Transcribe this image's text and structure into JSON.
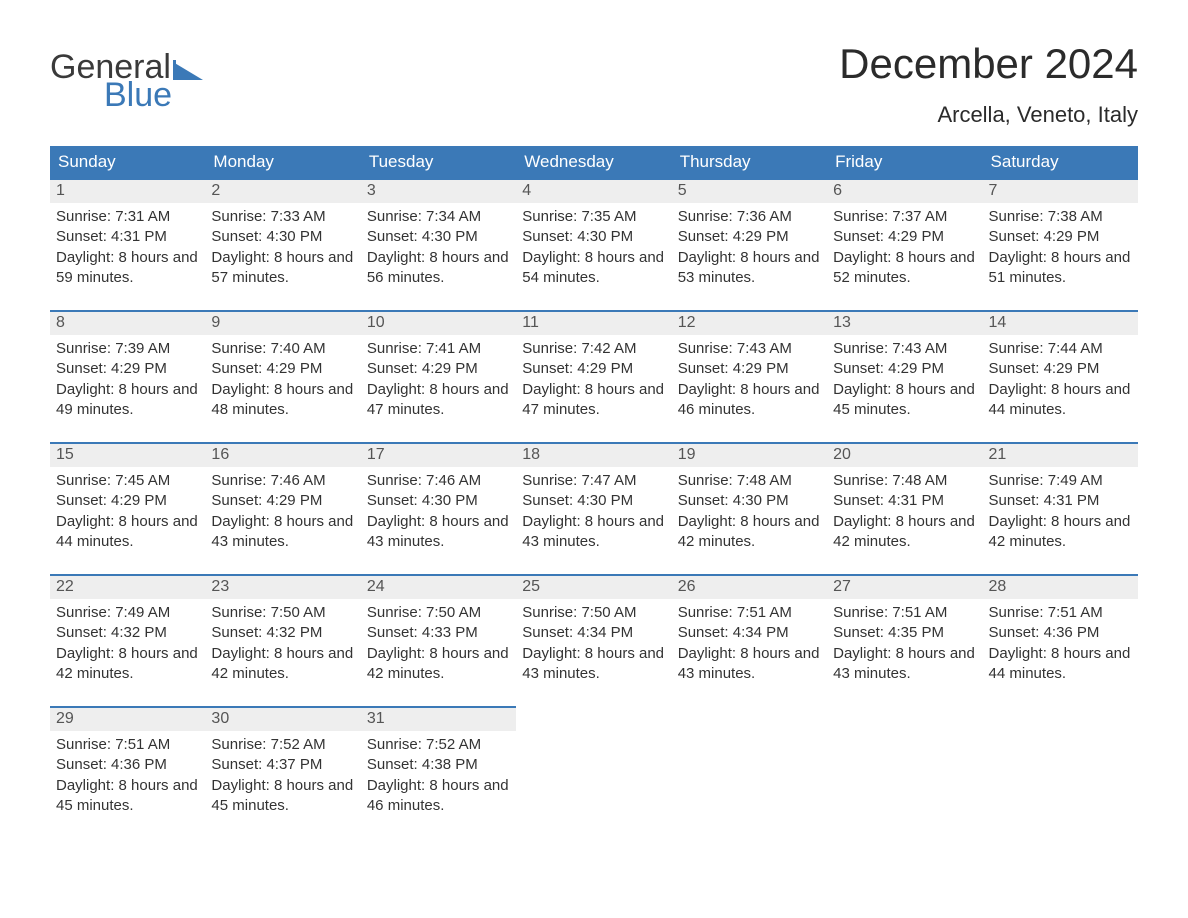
{
  "brand": {
    "word1": "General",
    "word2": "Blue"
  },
  "title": "December 2024",
  "location": "Arcella, Veneto, Italy",
  "colors": {
    "brand_blue": "#3b79b7",
    "header_gray": "#eeeeee",
    "text": "#333333",
    "background": "#ffffff"
  },
  "day_headers": [
    "Sunday",
    "Monday",
    "Tuesday",
    "Wednesday",
    "Thursday",
    "Friday",
    "Saturday"
  ],
  "weeks": [
    [
      {
        "n": "1",
        "sunrise": "7:31 AM",
        "sunset": "4:31 PM",
        "daylight": "8 hours and 59 minutes."
      },
      {
        "n": "2",
        "sunrise": "7:33 AM",
        "sunset": "4:30 PM",
        "daylight": "8 hours and 57 minutes."
      },
      {
        "n": "3",
        "sunrise": "7:34 AM",
        "sunset": "4:30 PM",
        "daylight": "8 hours and 56 minutes."
      },
      {
        "n": "4",
        "sunrise": "7:35 AM",
        "sunset": "4:30 PM",
        "daylight": "8 hours and 54 minutes."
      },
      {
        "n": "5",
        "sunrise": "7:36 AM",
        "sunset": "4:29 PM",
        "daylight": "8 hours and 53 minutes."
      },
      {
        "n": "6",
        "sunrise": "7:37 AM",
        "sunset": "4:29 PM",
        "daylight": "8 hours and 52 minutes."
      },
      {
        "n": "7",
        "sunrise": "7:38 AM",
        "sunset": "4:29 PM",
        "daylight": "8 hours and 51 minutes."
      }
    ],
    [
      {
        "n": "8",
        "sunrise": "7:39 AM",
        "sunset": "4:29 PM",
        "daylight": "8 hours and 49 minutes."
      },
      {
        "n": "9",
        "sunrise": "7:40 AM",
        "sunset": "4:29 PM",
        "daylight": "8 hours and 48 minutes."
      },
      {
        "n": "10",
        "sunrise": "7:41 AM",
        "sunset": "4:29 PM",
        "daylight": "8 hours and 47 minutes."
      },
      {
        "n": "11",
        "sunrise": "7:42 AM",
        "sunset": "4:29 PM",
        "daylight": "8 hours and 47 minutes."
      },
      {
        "n": "12",
        "sunrise": "7:43 AM",
        "sunset": "4:29 PM",
        "daylight": "8 hours and 46 minutes."
      },
      {
        "n": "13",
        "sunrise": "7:43 AM",
        "sunset": "4:29 PM",
        "daylight": "8 hours and 45 minutes."
      },
      {
        "n": "14",
        "sunrise": "7:44 AM",
        "sunset": "4:29 PM",
        "daylight": "8 hours and 44 minutes."
      }
    ],
    [
      {
        "n": "15",
        "sunrise": "7:45 AM",
        "sunset": "4:29 PM",
        "daylight": "8 hours and 44 minutes."
      },
      {
        "n": "16",
        "sunrise": "7:46 AM",
        "sunset": "4:29 PM",
        "daylight": "8 hours and 43 minutes."
      },
      {
        "n": "17",
        "sunrise": "7:46 AM",
        "sunset": "4:30 PM",
        "daylight": "8 hours and 43 minutes."
      },
      {
        "n": "18",
        "sunrise": "7:47 AM",
        "sunset": "4:30 PM",
        "daylight": "8 hours and 43 minutes."
      },
      {
        "n": "19",
        "sunrise": "7:48 AM",
        "sunset": "4:30 PM",
        "daylight": "8 hours and 42 minutes."
      },
      {
        "n": "20",
        "sunrise": "7:48 AM",
        "sunset": "4:31 PM",
        "daylight": "8 hours and 42 minutes."
      },
      {
        "n": "21",
        "sunrise": "7:49 AM",
        "sunset": "4:31 PM",
        "daylight": "8 hours and 42 minutes."
      }
    ],
    [
      {
        "n": "22",
        "sunrise": "7:49 AM",
        "sunset": "4:32 PM",
        "daylight": "8 hours and 42 minutes."
      },
      {
        "n": "23",
        "sunrise": "7:50 AM",
        "sunset": "4:32 PM",
        "daylight": "8 hours and 42 minutes."
      },
      {
        "n": "24",
        "sunrise": "7:50 AM",
        "sunset": "4:33 PM",
        "daylight": "8 hours and 42 minutes."
      },
      {
        "n": "25",
        "sunrise": "7:50 AM",
        "sunset": "4:34 PM",
        "daylight": "8 hours and 43 minutes."
      },
      {
        "n": "26",
        "sunrise": "7:51 AM",
        "sunset": "4:34 PM",
        "daylight": "8 hours and 43 minutes."
      },
      {
        "n": "27",
        "sunrise": "7:51 AM",
        "sunset": "4:35 PM",
        "daylight": "8 hours and 43 minutes."
      },
      {
        "n": "28",
        "sunrise": "7:51 AM",
        "sunset": "4:36 PM",
        "daylight": "8 hours and 44 minutes."
      }
    ],
    [
      {
        "n": "29",
        "sunrise": "7:51 AM",
        "sunset": "4:36 PM",
        "daylight": "8 hours and 45 minutes."
      },
      {
        "n": "30",
        "sunrise": "7:52 AM",
        "sunset": "4:37 PM",
        "daylight": "8 hours and 45 minutes."
      },
      {
        "n": "31",
        "sunrise": "7:52 AM",
        "sunset": "4:38 PM",
        "daylight": "8 hours and 46 minutes."
      },
      null,
      null,
      null,
      null
    ]
  ],
  "labels": {
    "sunrise_prefix": "Sunrise: ",
    "sunset_prefix": "Sunset: ",
    "daylight_prefix": "Daylight: "
  }
}
